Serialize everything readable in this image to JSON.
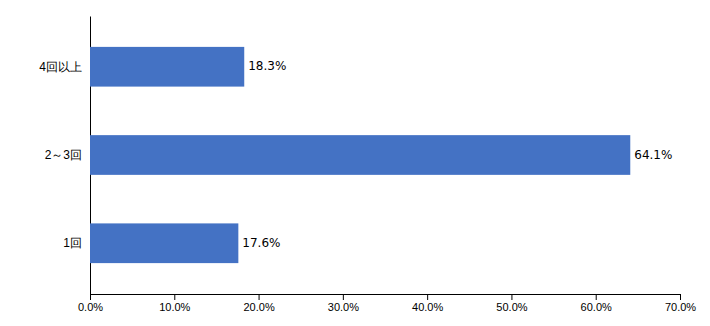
{
  "chart_data": {
    "type": "bar",
    "orientation": "horizontal",
    "categories": [
      "1回",
      "2～3回",
      "4回以上"
    ],
    "values": [
      0.176,
      0.641,
      0.183
    ],
    "value_labels": [
      "17.6%",
      "64.1%",
      "18.3%"
    ],
    "data_labels": true,
    "color": "#4472C4",
    "xlim": [
      0,
      0.7
    ],
    "xticks": [
      {
        "value": 0.0,
        "label": "0.0%"
      },
      {
        "value": 0.1,
        "label": "10.0%"
      },
      {
        "value": 0.2,
        "label": "20.0%"
      },
      {
        "value": 0.3,
        "label": "30.0%"
      },
      {
        "value": 0.4,
        "label": "40.0%"
      },
      {
        "value": 0.5,
        "label": "50.0%"
      },
      {
        "value": 0.6,
        "label": "60.0%"
      },
      {
        "value": 0.7,
        "label": "70.0%"
      }
    ],
    "grid": false
  }
}
